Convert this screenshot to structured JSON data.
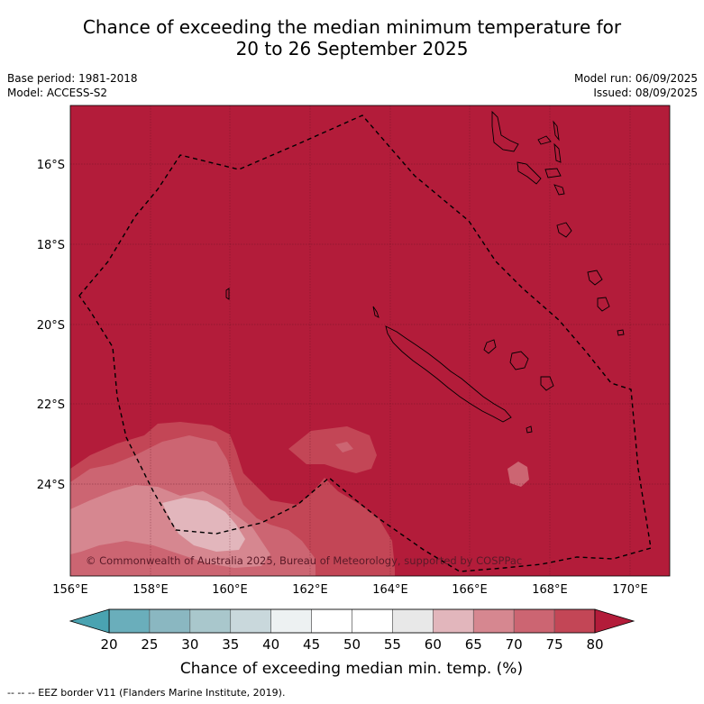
{
  "header": {
    "title_line1": "Chance of exceeding the median minimum temperature for",
    "title_line2": "20 to 26 September 2025",
    "base_period": "Base period: 1981-2018",
    "model": "Model: ACCESS-S2",
    "model_run": "Model run: 06/09/2025",
    "issued": "Issued: 08/09/2025"
  },
  "map": {
    "lon_ticks": [
      "156°E",
      "158°E",
      "160°E",
      "162°E",
      "164°E",
      "166°E",
      "168°E",
      "170°E"
    ],
    "lat_ticks": [
      "16°S",
      "18°S",
      "20°S",
      "22°S",
      "24°S"
    ],
    "copyright": "© Commonwealth of Australia 2025, Bureau of Meteorology, supported by COSPPac",
    "colors": {
      "above_80": "#b31c3a",
      "75_80": "#c34656",
      "70_75": "#cc6572",
      "65_70": "#d68790",
      "60_65": "#e2b6bc"
    }
  },
  "colorbar": {
    "labels": [
      "20",
      "25",
      "30",
      "35",
      "40",
      "45",
      "50",
      "55",
      "60",
      "65",
      "70",
      "75",
      "80"
    ],
    "colors": [
      "#4aa3b1",
      "#6aaebb",
      "#8ab7c1",
      "#a9c7cc",
      "#c9d8dc",
      "#edf1f2",
      "#ffffff",
      "#ffffff",
      "#e8e8e8",
      "#e2b6bc",
      "#d68790",
      "#cc6572",
      "#c34656",
      "#b31c3a"
    ],
    "title": "Chance of exceeding median min. temp. (%)"
  },
  "footnote": "--  --  -- EEZ border V11 (Flanders Marine Institute, 2019)."
}
